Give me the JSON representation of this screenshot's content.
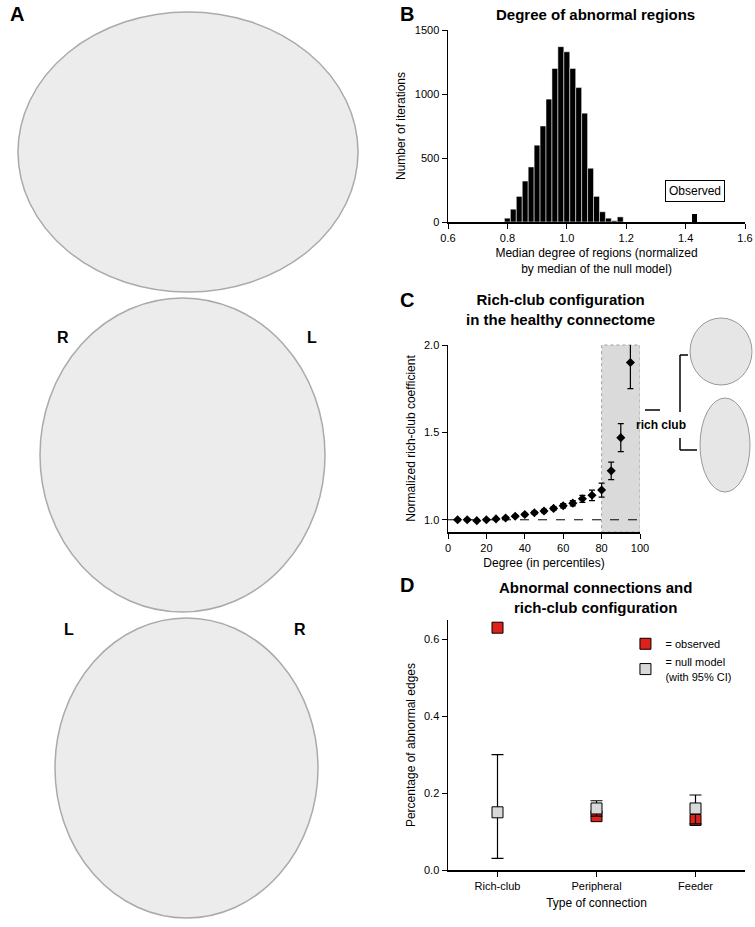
{
  "diagram": {
    "panel": "A",
    "view_labels": [
      [
        "R",
        "L"
      ],
      [
        "L",
        "R"
      ]
    ]
  },
  "chart_data": [
    {
      "panel": "B",
      "type": "histogram",
      "title": "Degree of abnormal regions",
      "x_label": "Median degree of regions (normalized\nby median of the null model)",
      "y_label": "Number of iterations",
      "bins": [
        0.79,
        0.81,
        0.83,
        0.85,
        0.87,
        0.89,
        0.91,
        0.93,
        0.95,
        0.97,
        0.99,
        1.01,
        1.03,
        1.05,
        1.07,
        1.09,
        1.11,
        1.13,
        1.15,
        1.17,
        1.19
      ],
      "values": [
        30,
        100,
        200,
        320,
        430,
        600,
        750,
        960,
        1200,
        1370,
        1330,
        1200,
        1050,
        850,
        420,
        200,
        80,
        30,
        10,
        40
      ],
      "color": "#000000",
      "observed": {
        "label": "Observed",
        "x": 1.43,
        "value": 60
      },
      "xlim": [
        0.6,
        1.6
      ],
      "xticks": [
        0.6,
        0.8,
        {
          "value": 1,
          "label": "1.0"
        },
        1.2,
        1.4,
        1.6
      ],
      "ylim": [
        0,
        1500
      ],
      "yticks": [
        0,
        500,
        1000,
        1500
      ],
      "grid": false
    },
    {
      "panel": "C",
      "type": "scatter",
      "title": "Rich-club configuration\nin the healthy connectome",
      "x_label": "Degree (in percentiles)",
      "y_label": "Normalized rich-club coefficient",
      "x": [
        5,
        10,
        15,
        20,
        25,
        30,
        35,
        40,
        45,
        50,
        55,
        60,
        65,
        70,
        75,
        80,
        85,
        90,
        95
      ],
      "values": [
        1.0,
        1.0,
        0.995,
        1.0,
        1.005,
        1.01,
        1.02,
        1.03,
        1.04,
        1.05,
        1.065,
        1.08,
        1.095,
        1.12,
        1.14,
        1.17,
        1.28,
        1.47,
        1.9
      ],
      "error": [
        0.005,
        0.005,
        0.005,
        0.005,
        0.005,
        0.005,
        0.006,
        0.007,
        0.008,
        0.009,
        0.01,
        0.012,
        0.015,
        0.02,
        0.03,
        0.04,
        0.05,
        0.08,
        0.15
      ],
      "marker": "diamond",
      "color": "#000000",
      "reference_y": 1,
      "shaded_x": [
        80,
        100
      ],
      "annotation": "rich club",
      "xlim": [
        0,
        100
      ],
      "xticks": [
        0,
        20,
        40,
        60,
        80,
        100
      ],
      "ylim": [
        0.93,
        2
      ],
      "yticks": [
        {
          "value": 1,
          "label": "1.0"
        },
        1.5,
        {
          "value": 2,
          "label": "2.0"
        }
      ],
      "grid": false
    },
    {
      "panel": "D",
      "type": "scatter",
      "title": "Abnormal connections and\nrich-club configuration",
      "x_label": "Type of connection",
      "y_label": "Percentage of abnormal edges",
      "categories": [
        "Rich-club",
        "Peripheral",
        "Feeder"
      ],
      "series": [
        {
          "name": "= observed",
          "color": "#e0201b",
          "marker": "square",
          "values": [
            0.63,
            0.14,
            0.13
          ]
        },
        {
          "name": "= null model\n(with 95% CI)",
          "color": "#d9d9d9",
          "marker": "square",
          "values": [
            0.15,
            0.16,
            0.16
          ],
          "ci_low": [
            0.03,
            0.14,
            0.12
          ],
          "ci_high": [
            0.3,
            0.18,
            0.195
          ]
        }
      ],
      "ylim": [
        0,
        0.65
      ],
      "yticks": [
        {
          "value": 0,
          "label": "0.0"
        },
        0.2,
        0.4,
        0.6
      ],
      "legend": "top right",
      "grid": false
    }
  ]
}
